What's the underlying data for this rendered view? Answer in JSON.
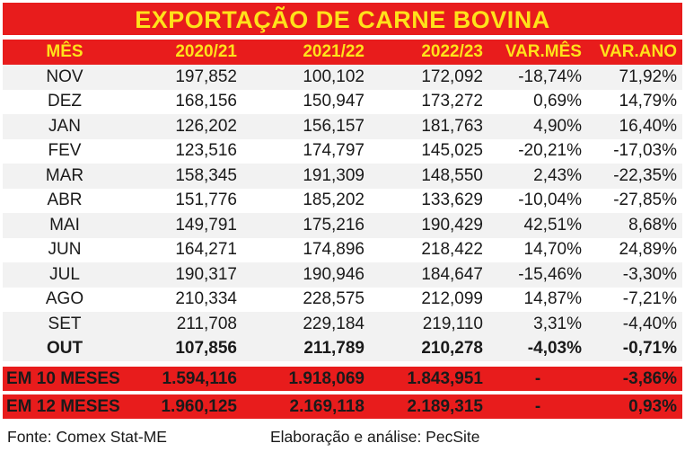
{
  "title": "EXPORTAÇÃO DE CARNE BOVINA",
  "headers": [
    "MÊS",
    "2020/21",
    "2021/22",
    "2022/23",
    "VAR.MÊS",
    "VAR.ANO"
  ],
  "rows": [
    [
      "NOV",
      "197,852",
      "100,102",
      "172,092",
      "-18,74%",
      "71,92%"
    ],
    [
      "DEZ",
      "168,156",
      "150,947",
      "173,272",
      "0,69%",
      "14,79%"
    ],
    [
      "JAN",
      "126,202",
      "156,157",
      "181,763",
      "4,90%",
      "16,40%"
    ],
    [
      "FEV",
      "123,516",
      "174,797",
      "145,025",
      "-20,21%",
      "-17,03%"
    ],
    [
      "MAR",
      "158,345",
      "191,309",
      "148,550",
      "2,43%",
      "-22,35%"
    ],
    [
      "ABR",
      "151,776",
      "185,202",
      "133,629",
      "-10,04%",
      "-27,85%"
    ],
    [
      "MAI",
      "149,791",
      "175,216",
      "190,429",
      "42,51%",
      "8,68%"
    ],
    [
      "JUN",
      "164,271",
      "174,896",
      "218,422",
      "14,70%",
      "24,89%"
    ],
    [
      "JUL",
      "190,317",
      "190,946",
      "184,647",
      "-15,46%",
      "-3,30%"
    ],
    [
      "AGO",
      "210,334",
      "228,575",
      "212,099",
      "14,87%",
      "-7,21%"
    ],
    [
      "SET",
      "211,708",
      "229,184",
      "219,110",
      "3,31%",
      "-4,40%"
    ],
    [
      "OUT",
      "107,856",
      "211,789",
      "210,278",
      "-4,03%",
      "-0,71%"
    ]
  ],
  "totals": [
    [
      "EM 10 MESES",
      "1.594,116",
      "1.918,069",
      "1.843,951",
      "-",
      "-3,86%"
    ],
    [
      "EM 12 MESES",
      "1.960,125",
      "2.169,118",
      "2.189,315",
      "-",
      "0,93%"
    ]
  ],
  "footer": {
    "source": "Fonte: Comex Stat-ME",
    "credit": "Elaboração e análise: PecSite"
  },
  "colors": {
    "header_bg": "#e81c1c",
    "header_text": "#ffe21a",
    "stripe": "#f2f2f2"
  }
}
